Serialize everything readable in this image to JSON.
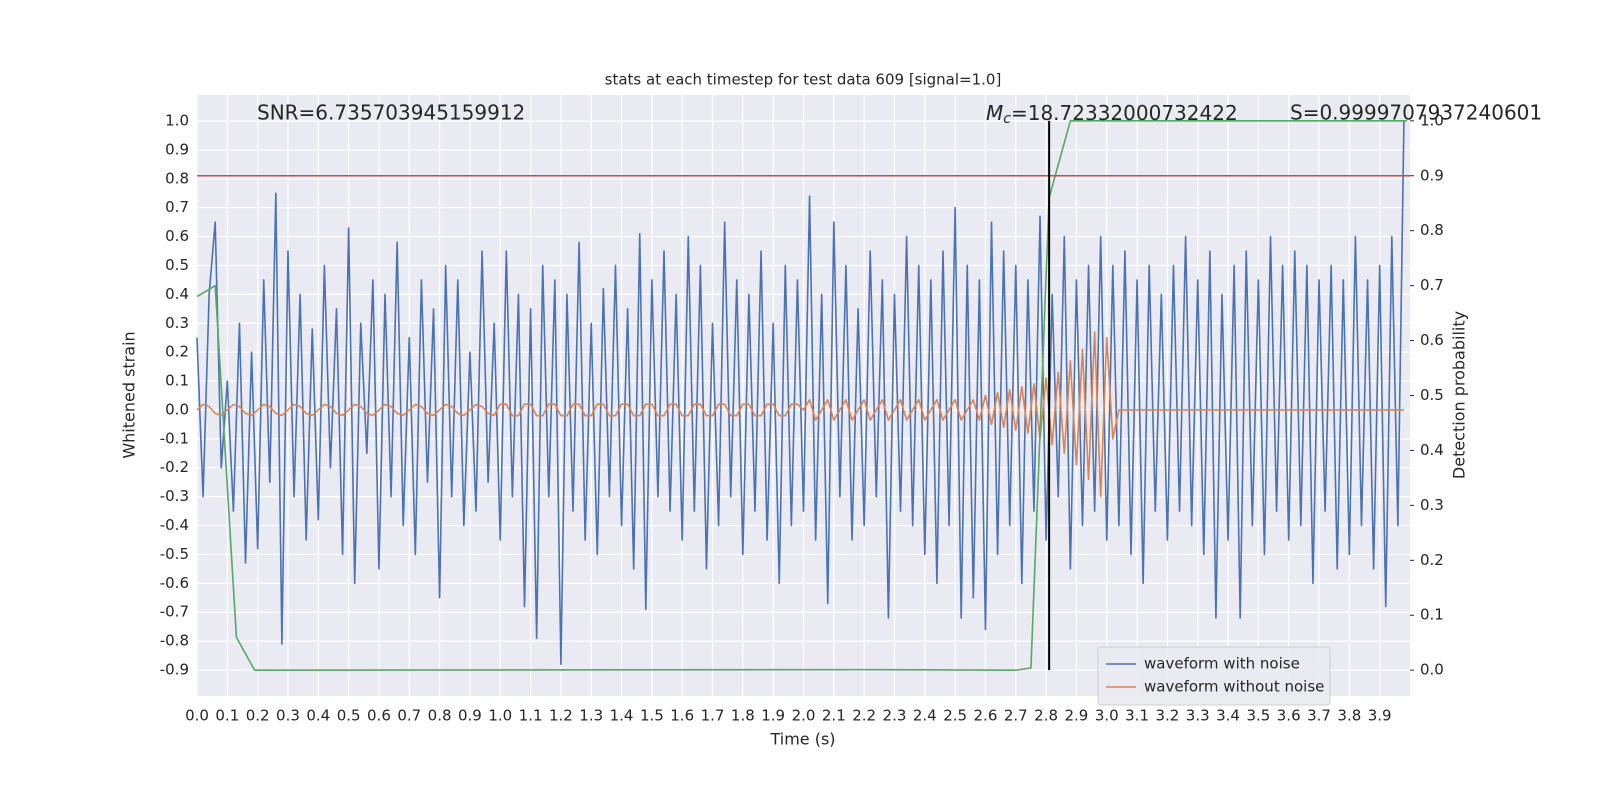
{
  "chart_data": {
    "type": "line",
    "title": "stats at each timestep for test data 609 [signal=1.0]",
    "x_label": "Time (s)",
    "y_label": "Whitened strain",
    "y2_label": "Detection probability",
    "annotations": {
      "snr": "SNR=6.735703945159912",
      "mc": {
        "symbol": "M",
        "subscript": "c",
        "text": "=18.72332000732422"
      },
      "s": "S=0.9999707937240601"
    },
    "xlim": [
      0,
      4.0
    ],
    "ylim": [
      -0.99,
      1.09
    ],
    "y2lim": [
      -0.047,
      1.047
    ],
    "xticks": [
      {
        "value": 0,
        "label": "0.0"
      },
      0.1,
      0.2,
      0.3,
      0.4,
      0.5,
      0.6,
      0.7,
      0.8,
      0.9,
      {
        "value": 1,
        "label": "1.0"
      },
      1.1,
      1.2,
      1.3,
      1.4,
      1.5,
      1.6,
      1.7,
      1.8,
      1.9,
      {
        "value": 2,
        "label": "2.0"
      },
      2.1,
      2.2,
      2.3,
      2.4,
      2.5,
      2.6,
      2.7,
      2.8,
      2.9,
      {
        "value": 3,
        "label": "3.0"
      },
      3.1,
      3.2,
      3.3,
      3.4,
      3.5,
      3.6,
      3.7,
      3.8,
      3.9
    ],
    "yticks": [
      -0.9,
      -0.8,
      -0.7,
      -0.6,
      -0.5,
      -0.4,
      -0.3,
      -0.2,
      -0.1,
      {
        "value": 0,
        "label": "0.0"
      },
      0.1,
      0.2,
      0.3,
      0.4,
      0.5,
      0.6,
      0.7,
      0.8,
      0.9,
      {
        "value": 1,
        "label": "1.0"
      }
    ],
    "y2ticks": [
      {
        "value": 0,
        "label": "0.0"
      },
      0.1,
      0.2,
      0.3,
      0.4,
      0.5,
      0.6,
      0.7,
      0.8,
      0.9,
      {
        "value": 1,
        "label": "1.0"
      }
    ],
    "grid": true,
    "legend": "lower right",
    "x": [
      0,
      0.02,
      0.04,
      0.06,
      0.08,
      0.1,
      0.12,
      0.14,
      0.16,
      0.18,
      0.2,
      0.22,
      0.24,
      0.26,
      0.28,
      0.3,
      0.32,
      0.34,
      0.36,
      0.38,
      0.4,
      0.42,
      0.44,
      0.46,
      0.48,
      0.5,
      0.52,
      0.54,
      0.56,
      0.58,
      0.6,
      0.62,
      0.64,
      0.66,
      0.68,
      0.7,
      0.72,
      0.74,
      0.76,
      0.78,
      0.8,
      0.82,
      0.84,
      0.86,
      0.88,
      0.9,
      0.92,
      0.94,
      0.96,
      0.98,
      1,
      1.02,
      1.04,
      1.06,
      1.08,
      1.1,
      1.12,
      1.14,
      1.16,
      1.18,
      1.2,
      1.22,
      1.24,
      1.26,
      1.28,
      1.3,
      1.32,
      1.34,
      1.36,
      1.38,
      1.4,
      1.42,
      1.44,
      1.46,
      1.48,
      1.5,
      1.52,
      1.54,
      1.56,
      1.58,
      1.6,
      1.62,
      1.64,
      1.66,
      1.68,
      1.7,
      1.72,
      1.74,
      1.76,
      1.78,
      1.8,
      1.82,
      1.84,
      1.86,
      1.88,
      1.9,
      1.92,
      1.94,
      1.96,
      1.98,
      2,
      2.02,
      2.04,
      2.06,
      2.08,
      2.1,
      2.12,
      2.14,
      2.16,
      2.18,
      2.2,
      2.22,
      2.24,
      2.26,
      2.28,
      2.3,
      2.32,
      2.34,
      2.36,
      2.38,
      2.4,
      2.42,
      2.44,
      2.46,
      2.48,
      2.5,
      2.52,
      2.54,
      2.56,
      2.58,
      2.6,
      2.62,
      2.64,
      2.66,
      2.68,
      2.7,
      2.72,
      2.74,
      2.76,
      2.78,
      2.8,
      2.82,
      2.84,
      2.86,
      2.88,
      2.9,
      2.92,
      2.94,
      2.96,
      2.98,
      3,
      3.02,
      3.04,
      3.06,
      3.08,
      3.1,
      3.12,
      3.14,
      3.16,
      3.18,
      3.2,
      3.22,
      3.24,
      3.26,
      3.28,
      3.3,
      3.32,
      3.34,
      3.36,
      3.38,
      3.4,
      3.42,
      3.44,
      3.46,
      3.48,
      3.5,
      3.52,
      3.54,
      3.56,
      3.58,
      3.6,
      3.62,
      3.64,
      3.66,
      3.68,
      3.7,
      3.72,
      3.74,
      3.76,
      3.78,
      3.8,
      3.82,
      3.84,
      3.86,
      3.88,
      3.9,
      3.92,
      3.94,
      3.96,
      3.98
    ],
    "series": [
      {
        "name": "waveform with noise",
        "color": "#4c72b0",
        "values": [
          0.25,
          -0.3,
          0.4,
          0.65,
          -0.2,
          0.1,
          -0.35,
          0.3,
          -0.53,
          0.2,
          -0.48,
          0.45,
          -0.25,
          0.75,
          -0.81,
          0.55,
          -0.3,
          0.4,
          -0.45,
          0.28,
          -0.38,
          0.5,
          -0.2,
          0.35,
          -0.5,
          0.63,
          -0.6,
          0.3,
          -0.15,
          0.45,
          -0.55,
          0.4,
          -0.3,
          0.58,
          -0.4,
          0.25,
          -0.5,
          0.45,
          -0.25,
          0.35,
          -0.65,
          0.5,
          -0.3,
          0.45,
          -0.4,
          0.2,
          -0.35,
          0.55,
          -0.25,
          0.3,
          -0.45,
          0.55,
          -0.3,
          0.4,
          -0.68,
          0.35,
          -0.79,
          0.5,
          -0.3,
          0.45,
          -0.88,
          0.4,
          -0.35,
          0.58,
          -0.45,
          0.3,
          -0.5,
          0.42,
          -0.3,
          0.5,
          -0.4,
          0.35,
          -0.55,
          0.61,
          -0.69,
          0.45,
          -0.3,
          0.55,
          -0.35,
          0.4,
          -0.45,
          0.6,
          -0.35,
          0.5,
          -0.55,
          0.3,
          -0.4,
          0.65,
          -0.3,
          0.45,
          -0.5,
          0.4,
          -0.35,
          0.55,
          -0.45,
          0.3,
          -0.6,
          0.5,
          -0.4,
          0.45,
          -0.35,
          0.74,
          -0.45,
          0.4,
          -0.67,
          0.65,
          -0.3,
          0.5,
          -0.45,
          0.35,
          -0.4,
          0.55,
          -0.3,
          0.45,
          -0.72,
          0.4,
          -0.35,
          0.6,
          -0.4,
          0.5,
          -0.5,
          0.45,
          -0.6,
          0.55,
          -0.4,
          0.7,
          -0.72,
          0.5,
          -0.65,
          0.45,
          -0.76,
          0.65,
          -0.5,
          0.55,
          -0.4,
          0.5,
          -0.6,
          0.45,
          -0.35,
          0.67,
          -0.45,
          0.4,
          -0.3,
          0.6,
          -0.55,
          0.45,
          -0.4,
          0.5,
          -0.35,
          0.6,
          -0.45,
          0.5,
          -0.4,
          0.55,
          -0.5,
          0.45,
          -0.6,
          0.5,
          -0.35,
          0.4,
          -0.45,
          0.5,
          -0.35,
          0.6,
          -0.4,
          0.45,
          -0.5,
          0.55,
          -0.72,
          0.4,
          -0.45,
          0.5,
          -0.72,
          0.55,
          -0.4,
          0.45,
          -0.5,
          0.6,
          -0.35,
          0.5,
          -0.45,
          0.55,
          -0.4,
          0.5,
          -0.6,
          0.45,
          -0.35,
          0.5,
          -0.55,
          0.45,
          -0.5,
          0.6,
          -0.4,
          0.45,
          -0.55,
          0.5,
          -0.68,
          0.6,
          -0.4,
          1.0
        ]
      },
      {
        "name": "waveform without noise",
        "color": "#dd8452",
        "values": [
          0,
          0.019,
          0.012,
          -0.012,
          -0.019,
          0,
          0.019,
          0.012,
          -0.012,
          -0.019,
          0,
          0.019,
          0.012,
          -0.012,
          -0.019,
          0,
          0.019,
          0.012,
          -0.012,
          -0.019,
          0,
          0.019,
          0.012,
          -0.012,
          -0.019,
          0,
          0.019,
          0.012,
          -0.012,
          -0.019,
          0,
          0.019,
          0.012,
          -0.012,
          -0.019,
          0,
          0.019,
          0.012,
          -0.012,
          -0.019,
          0,
          0.019,
          0.012,
          -0.012,
          -0.019,
          0,
          0.019,
          0.012,
          -0.012,
          -0.019,
          0.02,
          0.02,
          -0.02,
          -0.02,
          0.02,
          0.02,
          -0.02,
          -0.02,
          0.02,
          0.02,
          -0.02,
          -0.02,
          0.02,
          0.02,
          -0.02,
          -0.02,
          0.02,
          0.02,
          -0.02,
          -0.02,
          0.02,
          0.02,
          -0.02,
          -0.02,
          0.02,
          0.02,
          -0.02,
          -0.02,
          0.02,
          0.02,
          -0.02,
          -0.02,
          0.02,
          0.02,
          -0.02,
          -0.02,
          0.02,
          0.02,
          -0.02,
          -0.02,
          0.02,
          0.02,
          -0.02,
          -0.02,
          0.02,
          0.02,
          -0.02,
          -0.02,
          0.02,
          0.02,
          0,
          0.035,
          -0.035,
          0,
          0.035,
          -0.035,
          0,
          0.035,
          -0.035,
          0,
          0.035,
          -0.035,
          0,
          0.035,
          -0.035,
          0,
          0.035,
          -0.035,
          0,
          0.035,
          -0.035,
          0,
          0.035,
          -0.035,
          0,
          0.035,
          -0.035,
          0,
          0.035,
          -0.035,
          0.05,
          -0.05,
          0.06,
          -0.06,
          0.07,
          -0.07,
          0.08,
          -0.08,
          0.09,
          -0.1,
          0.11,
          -0.12,
          0.13,
          -0.15,
          0.17,
          -0.19,
          0.21,
          -0.24,
          0.27,
          -0.3,
          0.25,
          -0.1,
          0,
          0,
          0,
          0,
          0,
          0,
          0,
          0,
          0,
          0,
          0,
          0,
          0,
          0,
          0,
          0,
          0,
          0,
          0,
          0,
          0,
          0,
          0,
          0,
          0,
          0,
          0,
          0,
          0,
          0,
          0,
          0,
          0,
          0,
          0,
          0,
          0,
          0,
          0,
          0,
          0,
          0,
          0,
          0,
          0,
          0,
          0,
          0
        ]
      },
      {
        "color": "#55a868",
        "axis": "y2",
        "x": [
          0,
          0.06,
          0.13,
          0.19,
          2.2,
          2.7,
          2.75,
          2.81,
          2.88,
          3.99
        ],
        "values": [
          0.68,
          0.7,
          0.06,
          0,
          0.001,
          0,
          0.004,
          0.86,
          1,
          1
        ]
      }
    ],
    "hlines": [
      {
        "value": 0.9,
        "axis": "y2",
        "color": "#c44e52"
      }
    ],
    "vlines": [
      {
        "value": 2.81,
        "ymin": 0,
        "ymax": 1,
        "axis": "y2",
        "color": "#000000"
      }
    ]
  }
}
